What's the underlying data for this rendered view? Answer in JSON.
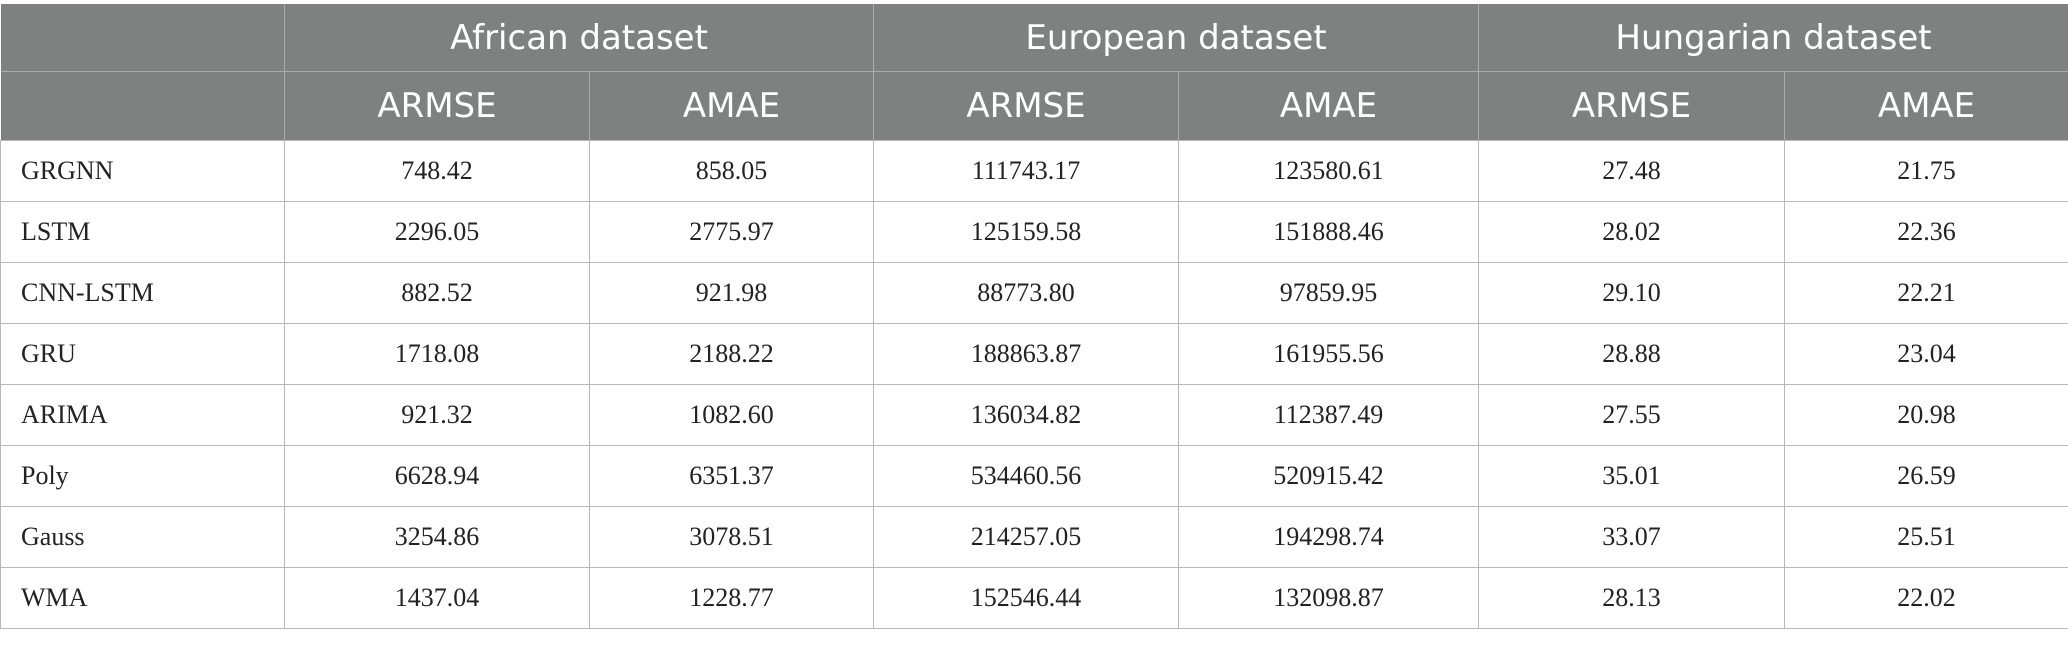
{
  "table": {
    "groups": [
      "African dataset",
      "European dataset",
      "Hungarian dataset"
    ],
    "metrics": [
      "ARMSE",
      "AMAE",
      "ARMSE",
      "AMAE",
      "ARMSE",
      "AMAE"
    ],
    "rows": [
      {
        "model": "GRGNN",
        "values": [
          "748.42",
          "858.05",
          "111743.17",
          "123580.61",
          "27.48",
          "21.75"
        ]
      },
      {
        "model": "LSTM",
        "values": [
          "2296.05",
          "2775.97",
          "125159.58",
          "151888.46",
          "28.02",
          "22.36"
        ]
      },
      {
        "model": "CNN-LSTM",
        "values": [
          "882.52",
          "921.98",
          "88773.80",
          "97859.95",
          "29.10",
          "22.21"
        ]
      },
      {
        "model": "GRU",
        "values": [
          "1718.08",
          "2188.22",
          "188863.87",
          "161955.56",
          "28.88",
          "23.04"
        ]
      },
      {
        "model": "ARIMA",
        "values": [
          "921.32",
          "1082.60",
          "136034.82",
          "112387.49",
          "27.55",
          "20.98"
        ]
      },
      {
        "model": "Poly",
        "values": [
          "6628.94",
          "6351.37",
          "534460.56",
          "520915.42",
          "35.01",
          "26.59"
        ]
      },
      {
        "model": "Gauss",
        "values": [
          "3254.86",
          "3078.51",
          "214257.05",
          "194298.74",
          "33.07",
          "25.51"
        ]
      },
      {
        "model": "WMA",
        "values": [
          "1437.04",
          "1228.77",
          "152546.44",
          "132098.87",
          "28.13",
          "22.02"
        ]
      }
    ]
  }
}
